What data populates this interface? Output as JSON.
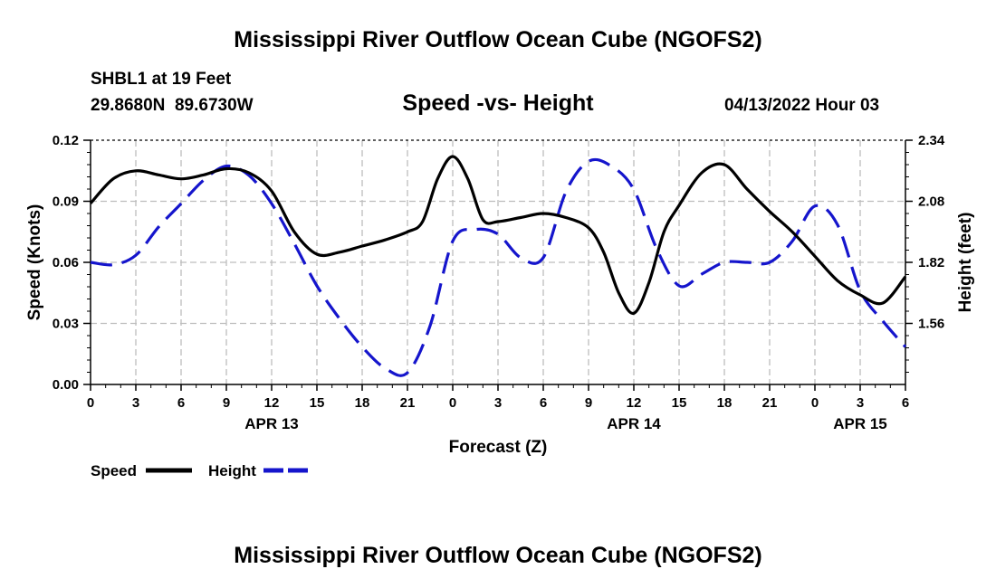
{
  "title": "Mississippi River Outflow Ocean Cube (NGOFS2)",
  "title_bottom": "Mississippi River Outflow Ocean Cube (NGOFS2)",
  "station": "SHBL1 at 19 Feet",
  "coords": "29.8680N  89.6730W",
  "date": "04/13/2022 Hour 03",
  "chart_data": {
    "type": "line",
    "title": "Speed -vs- Height",
    "xlabel": "Forecast (Z)",
    "ylabel": "Speed (Knots)",
    "y2label": "Height (feet)",
    "xlim": [
      0,
      54
    ],
    "ylim": [
      0,
      0.12
    ],
    "y2lim": [
      1.3,
      2.34
    ],
    "x_ticks": [
      0,
      3,
      6,
      9,
      12,
      15,
      18,
      21,
      24,
      27,
      30,
      33,
      36,
      39,
      42,
      45,
      48,
      51,
      54
    ],
    "x_tick_labels": [
      "0",
      "3",
      "6",
      "9",
      "12",
      "15",
      "18",
      "21",
      "0",
      "3",
      "6",
      "9",
      "12",
      "15",
      "18",
      "21",
      "0",
      "3",
      "6"
    ],
    "date_labels": [
      {
        "x": 12,
        "label": "APR 13"
      },
      {
        "x": 36,
        "label": "APR 14"
      },
      {
        "x": 51,
        "label": "APR 15"
      }
    ],
    "y_ticks": [
      0,
      0.03,
      0.06,
      0.09,
      0.12
    ],
    "y_tick_labels": [
      "0.00",
      "0.03",
      "0.06",
      "0.09",
      "0.12"
    ],
    "y2_ticks": [
      1.56,
      1.82,
      2.08,
      2.34
    ],
    "y2_tick_labels": [
      "1.56",
      "1.82",
      "2.08",
      "2.34"
    ],
    "grid": true,
    "series": [
      {
        "name": "Speed",
        "axis": "left",
        "color": "#000000",
        "dash": "solid",
        "x": [
          0,
          1.5,
          3,
          4.5,
          6,
          7.5,
          9,
          10.5,
          12,
          13.5,
          15,
          16.5,
          18,
          19.5,
          21,
          22,
          23,
          24,
          25,
          26,
          27,
          28.5,
          30,
          31.5,
          33,
          34,
          35,
          36,
          37,
          38,
          39,
          40.5,
          42,
          43.5,
          45,
          46.5,
          48,
          49.5,
          51,
          52.5,
          54
        ],
        "values": [
          0.089,
          0.101,
          0.105,
          0.103,
          0.101,
          0.103,
          0.106,
          0.104,
          0.095,
          0.075,
          0.064,
          0.065,
          0.068,
          0.071,
          0.075,
          0.08,
          0.101,
          0.112,
          0.101,
          0.081,
          0.08,
          0.082,
          0.084,
          0.082,
          0.077,
          0.065,
          0.045,
          0.035,
          0.05,
          0.075,
          0.088,
          0.104,
          0.108,
          0.096,
          0.085,
          0.075,
          0.063,
          0.051,
          0.044,
          0.04,
          0.053
        ]
      },
      {
        "name": "Height",
        "axis": "right",
        "color": "#1515cc",
        "dash": "dashed",
        "x": [
          0,
          1.5,
          3,
          4.5,
          6,
          7.5,
          9,
          10.5,
          12,
          13.5,
          15,
          16.5,
          18,
          19.5,
          21,
          22.5,
          24,
          25.5,
          27,
          28.5,
          30,
          31.5,
          33,
          34.5,
          36,
          37.5,
          39,
          40.5,
          42,
          43.5,
          45,
          46.5,
          48,
          49.5,
          51,
          52.5,
          54
        ],
        "values": [
          1.82,
          1.81,
          1.85,
          1.97,
          2.07,
          2.17,
          2.23,
          2.19,
          2.07,
          1.9,
          1.72,
          1.58,
          1.46,
          1.37,
          1.35,
          1.55,
          1.91,
          1.96,
          1.94,
          1.84,
          1.84,
          2.12,
          2.25,
          2.23,
          2.13,
          1.88,
          1.72,
          1.77,
          1.82,
          1.82,
          1.82,
          1.91,
          2.06,
          1.98,
          1.7,
          1.57,
          1.46
        ]
      }
    ],
    "legend": {
      "position": "bottom-left",
      "items": [
        "Speed",
        "Height"
      ]
    }
  }
}
